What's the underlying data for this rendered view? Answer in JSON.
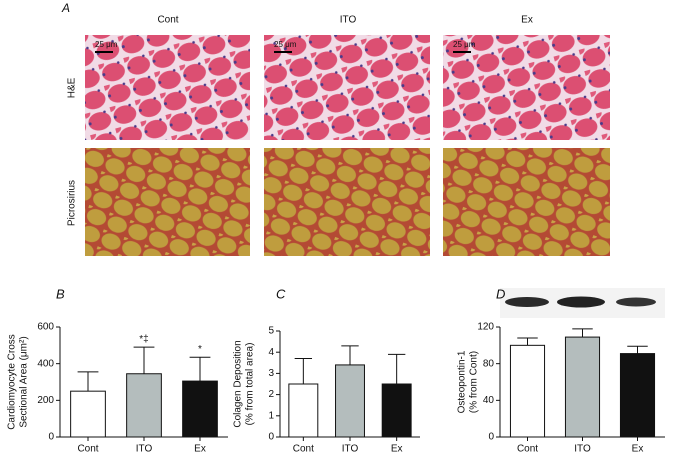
{
  "figure": {
    "panel": "A",
    "columns": [
      "Cont",
      "ITO",
      "Ex"
    ],
    "rows": [
      "H&E",
      "Picrosirius"
    ],
    "scale_bars": [
      "25 μm",
      "25 μm",
      "25 μm"
    ]
  },
  "chart_data": [
    {
      "type": "bar",
      "panel": "B",
      "ylabel": [
        "Cardiomyocyte Cross",
        "Sectional Area (μm²)"
      ],
      "categories": [
        "Cont",
        "ITO",
        "Ex"
      ],
      "values": [
        250,
        345,
        305
      ],
      "errors": [
        105,
        145,
        130
      ],
      "colors": [
        "#ffffff",
        "#b4bdbd",
        "#111111"
      ],
      "annotations": [
        null,
        "*‡",
        "*"
      ],
      "ylim": [
        0,
        600
      ],
      "yticks": [
        0,
        200,
        400,
        600
      ]
    },
    {
      "type": "bar",
      "panel": "C",
      "ylabel": [
        "Colagen Deposition",
        "(% from total area)"
      ],
      "categories": [
        "Cont",
        "ITO",
        "Ex"
      ],
      "values": [
        2.5,
        3.4,
        2.5
      ],
      "errors": [
        1.2,
        0.9,
        1.4
      ],
      "colors": [
        "#ffffff",
        "#b4bdbd",
        "#111111"
      ],
      "ylim": [
        0,
        5
      ],
      "yticks": [
        0,
        1,
        2,
        3,
        4,
        5
      ]
    },
    {
      "type": "bar",
      "panel": "D",
      "ylabel": [
        "Osteopontin-1",
        "(% from Cont)"
      ],
      "categories": [
        "Cont",
        "ITO",
        "Ex"
      ],
      "values": [
        100,
        109,
        91
      ],
      "errors": [
        8,
        9,
        8
      ],
      "colors": [
        "#ffffff",
        "#b4bdbd",
        "#111111"
      ],
      "ylim": [
        0,
        120
      ],
      "yticks": [
        0,
        40,
        80,
        120
      ]
    }
  ]
}
